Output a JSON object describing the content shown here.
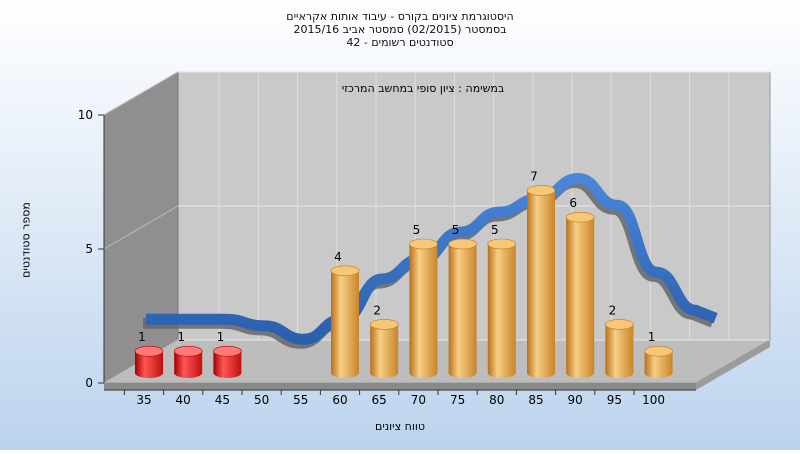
{
  "colors": {
    "background_top": "#ffffff",
    "background_bottom": "#bcd3ee",
    "back_wall": "#c9c9c9",
    "side_wall": "#8f8f8f",
    "floor": "#bdbdbd",
    "low_bar": "#e02020",
    "bar": "#e5a443",
    "curve": "#2f6fc4"
  },
  "chart_data": {
    "type": "bar",
    "title_lines": [
      "היסטוגרמת ציונים בקורס - עיבוד אותות אקראיים",
      "בסמסטר  (02/2015)  סמסטר אביב 2015/16",
      "סטודנטים רשומים - 42"
    ],
    "annotation": "במשימה : ציון סופי במחשב המרכזי",
    "xlabel": "טווח ציונים",
    "ylabel": "מספר סטודנטים",
    "categories": [
      "35",
      "40",
      "45",
      "50",
      "55",
      "60",
      "65",
      "70",
      "75",
      "80",
      "85",
      "90",
      "95",
      "100"
    ],
    "values": [
      1,
      1,
      1,
      0,
      0,
      4,
      2,
      5,
      5,
      5,
      7,
      6,
      2,
      1
    ],
    "low_threshold_categories": [
      "35",
      "40",
      "45"
    ],
    "yticks": [
      "0",
      "5",
      "10"
    ],
    "ylim": [
      0,
      10
    ],
    "grid": true,
    "legend": "none"
  }
}
